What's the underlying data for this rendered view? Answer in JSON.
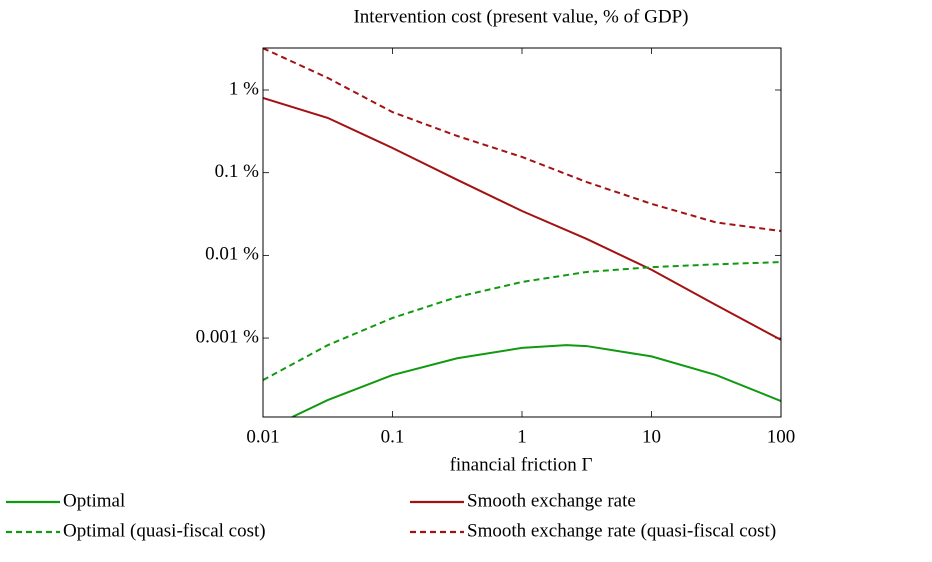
{
  "chart_data": {
    "type": "line",
    "title": "Intervention cost (present value, % of GDP)",
    "x_label": "financial friction Γ",
    "xscale": "log",
    "yscale": "log",
    "xlim": [
      0.01,
      100
    ],
    "xticks": [
      0.01,
      0.1,
      1,
      10,
      100
    ],
    "ylim": [
      0.000111,
      3.22
    ],
    "yticks": [
      {
        "value": 0.001,
        "label": "0.001 %"
      },
      {
        "value": 0.01,
        "label": "0.01 %"
      },
      {
        "value": 0.1,
        "label": "0.1 %"
      },
      {
        "value": 1,
        "label": "1 %"
      }
    ],
    "legend": "bottom",
    "series": [
      {
        "name": "Optimal",
        "color": "#119911",
        "style": "solid",
        "x": [
          0.0168,
          0.0316,
          0.1,
          0.316,
          1,
          2.2,
          3.16,
          10,
          31.6,
          100
        ],
        "values": [
          0.000111,
          0.000178,
          0.000357,
          0.00057,
          0.00076,
          0.00082,
          0.0008,
          0.0006,
          0.000357,
          0.000173
        ]
      },
      {
        "name": "Smooth exchange rate",
        "color": "#a31212",
        "style": "solid",
        "x": [
          0.01,
          0.0316,
          0.1,
          0.316,
          1,
          3.16,
          10,
          31.6,
          100
        ],
        "values": [
          0.8,
          0.46,
          0.199,
          0.082,
          0.0344,
          0.0158,
          0.0067,
          0.0025,
          0.00095
        ]
      },
      {
        "name": "Optimal (quasi-fiscal cost)",
        "color": "#119911",
        "style": "dashed",
        "x": [
          0.01,
          0.0316,
          0.1,
          0.316,
          1,
          3.16,
          10,
          31.6,
          100
        ],
        "values": [
          0.00031,
          0.00082,
          0.00175,
          0.00314,
          0.00477,
          0.0063,
          0.0072,
          0.0078,
          0.0083
        ]
      },
      {
        "name": "Smooth exchange rate (quasi-fiscal cost)",
        "color": "#a31212",
        "style": "dashed",
        "x": [
          0.01,
          0.0316,
          0.1,
          0.316,
          1,
          3.16,
          10,
          31.6,
          100
        ],
        "values": [
          3.2,
          1.4,
          0.54,
          0.278,
          0.155,
          0.077,
          0.042,
          0.025,
          0.0197
        ]
      }
    ]
  }
}
